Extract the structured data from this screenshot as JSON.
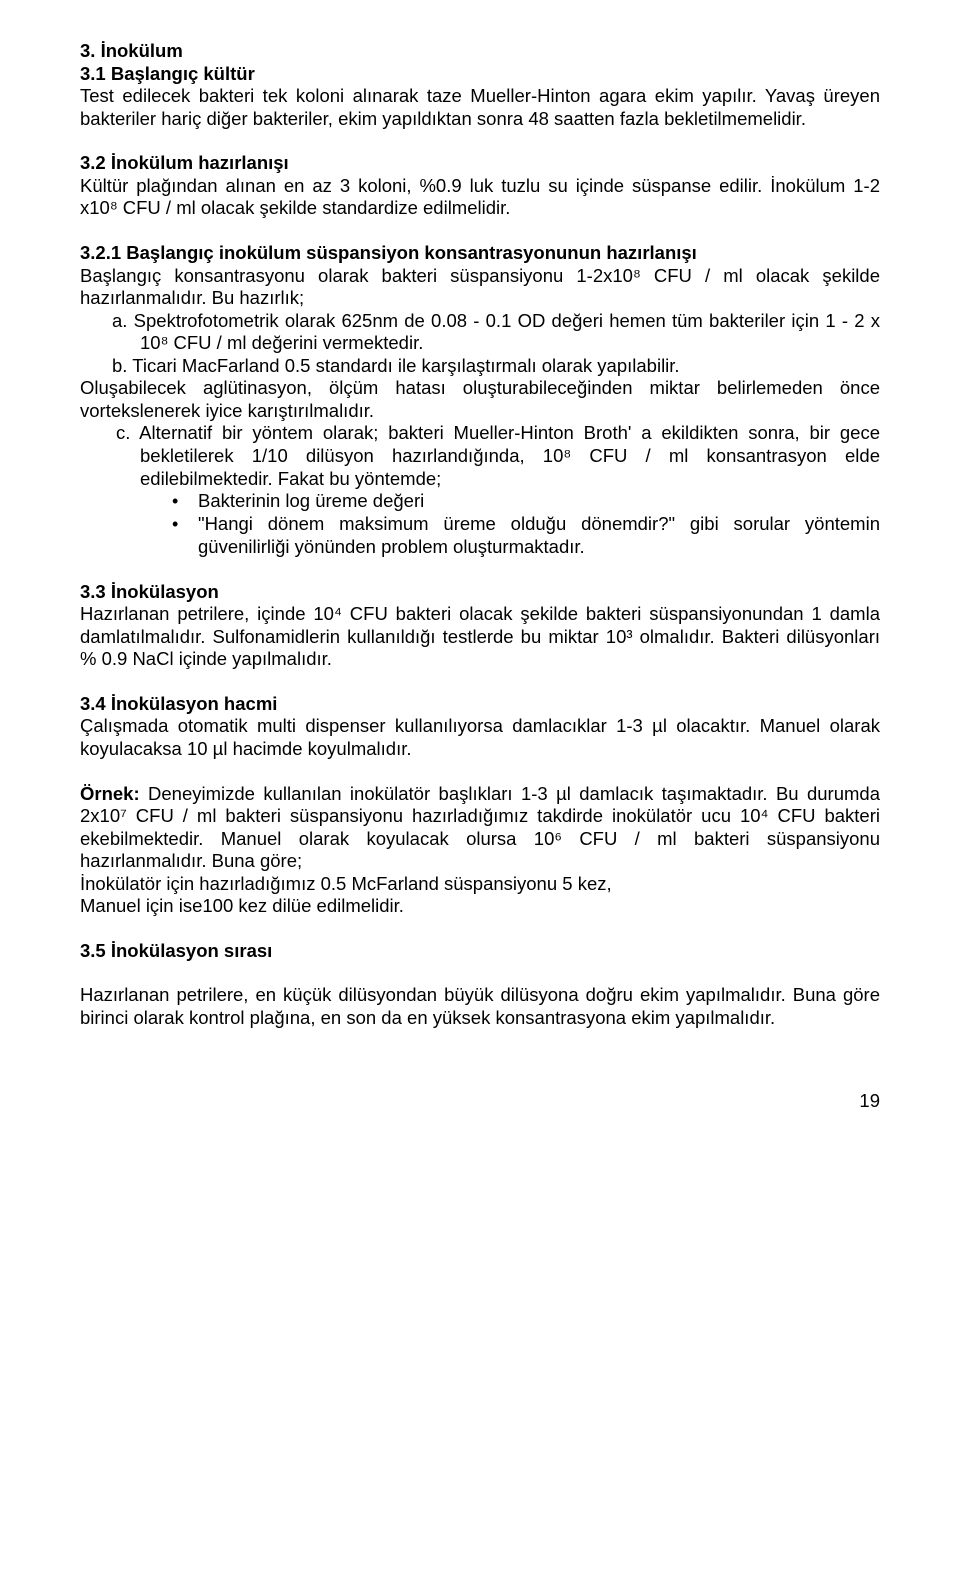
{
  "s3": {
    "h": "3. İnokülum",
    "h31": "3.1 Başlangıç kültür",
    "p31": "Test edilecek bakteri tek koloni alınarak taze Mueller-Hinton agara ekim yapılır. Yavaş üreyen bakteriler hariç diğer bakteriler, ekim yapıldıktan sonra 48 saatten fazla bekletilmemelidir.",
    "h32": "3.2 İnokülum hazırlanışı",
    "p32": "Kültür plağından alınan en az 3 koloni, %0.9 luk tuzlu su içinde süspanse edilir. İnokülum 1-2 x10⁸ CFU / ml olacak şekilde standardize edilmelidir.",
    "h321": "3.2.1 Başlangıç inokülum süspansiyon konsantrasyonunun hazırlanışı",
    "p321": "Başlangıç konsantrasyonu olarak bakteri süspansiyonu 1-2x10⁸ CFU / ml olacak şekilde hazırlanmalıdır. Bu hazırlık;",
    "a": "a. Spektrofotometrik olarak 625nm de 0.08 - 0.1 OD değeri hemen tüm bakteriler için  1 - 2 x 10⁸ CFU / ml değerini vermektedir.",
    "b": "b.  Ticari MacFarland 0.5 standardı ile karşılaştırmalı olarak yapılabilir.",
    "pab": "Oluşabilecek aglütinasyon, ölçüm hatası oluşturabileceğinden miktar belirlemeden önce vortekslenerek iyice karıştırılmalıdır.",
    "c": "c. Alternatif bir yöntem olarak; bakteri Mueller-Hinton Broth' a ekildikten sonra, bir gece bekletilerek 1/10 dilüsyon hazırlandığında, 10⁸ CFU / ml konsantrasyon elde edilebilmektedir. Fakat bu yöntemde;",
    "bul1": "Bakterinin log üreme değeri",
    "bul2": "\"Hangi dönem maksimum üreme olduğu dönemdir?\" gibi sorular yöntemin güvenilirliği yönünden problem oluşturmaktadır.",
    "h33": "3.3 İnokülasyon",
    "p33": "Hazırlanan petrilere, içinde 10⁴ CFU bakteri olacak şekilde bakteri süspansiyonundan 1 damla damlatılmalıdır. Sulfonamidlerin kullanıldığı testlerde bu miktar 10³ olmalıdır. Bakteri dilüsyonları % 0.9 NaCl içinde yapılmalıdır.",
    "h34": "3.4 İnokülasyon hacmi",
    "p34": "Çalışmada otomatik multi dispenser kullanılıyorsa damlacıklar 1-3 µl olacaktır. Manuel olarak koyulacaksa 10 µl hacimde koyulmalıdır.",
    "exLabel": "Örnek:",
    "exText": " Deneyimizde kullanılan inokülatör başlıkları 1-3 µl damlacık taşımaktadır. Bu durumda 2x10⁷ CFU / ml bakteri süspansiyonu hazırladığımız takdirde inokülatör ucu 10⁴ CFU bakteri ekebilmektedir. Manuel olarak koyulacak olursa 10⁶ CFU / ml bakteri süspansiyonu hazırlanmalıdır. Buna göre;",
    "ex2": "İnokülatör için hazırladığımız 0.5 McFarland süspansiyonu 5 kez,",
    "ex3": "Manuel için ise100 kez dilüe edilmelidir.",
    "h35": "3.5 İnokülasyon sırası",
    "p35": "Hazırlanan petrilere, en küçük dilüsyondan büyük dilüsyona doğru ekim yapılmalıdır. Buna göre birinci olarak kontrol plağına, en son da en yüksek konsantrasyona ekim yapılmalıdır."
  },
  "page": "19"
}
